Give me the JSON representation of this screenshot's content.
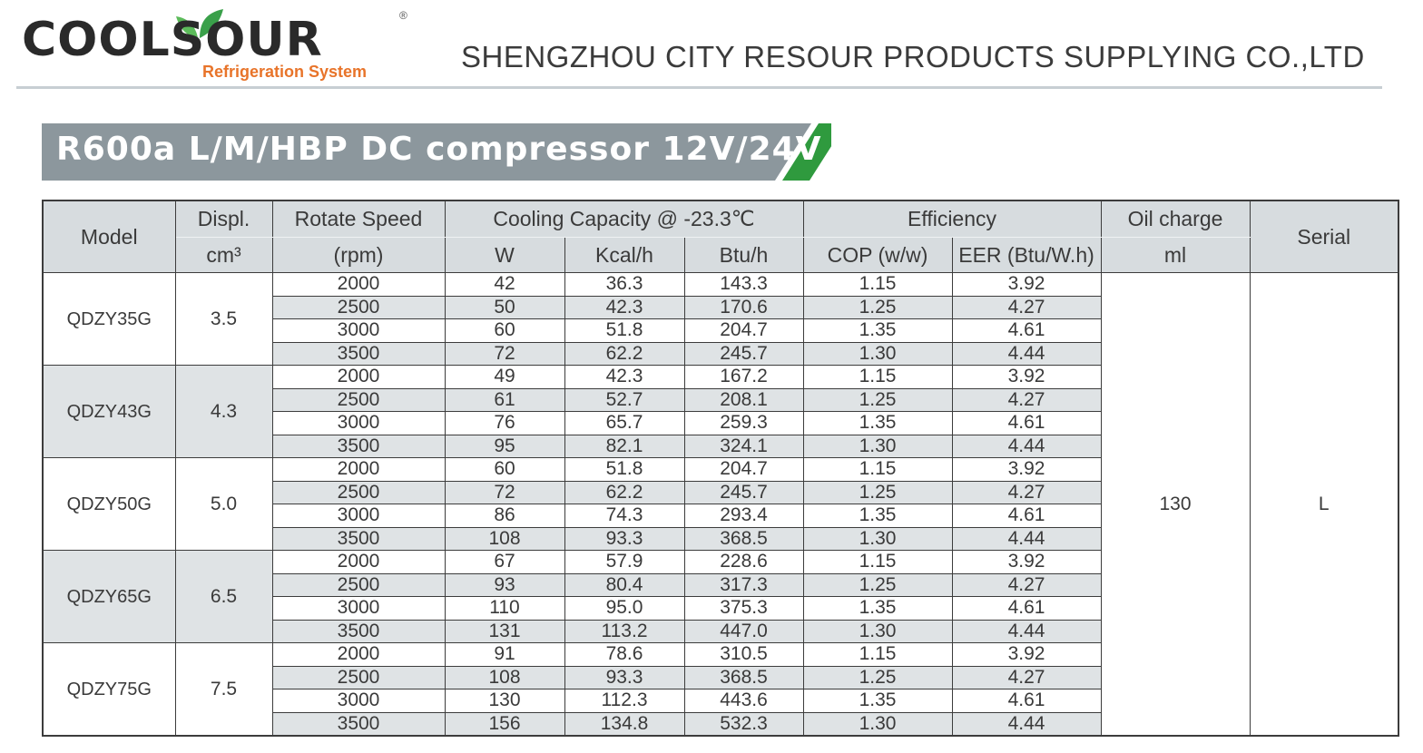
{
  "header": {
    "logo_text": "COOLSOUR",
    "logo_sub": "Refrigeration System",
    "logo_reg": "®",
    "company": "SHENGZHOU CITY RESOUR PRODUCTS SUPPLYING CO.,LTD"
  },
  "title": "R600a L/M/HBP DC compressor  12V/24V",
  "colors": {
    "accent_green": "#2f9a3e",
    "band_gray": "#8c979d",
    "header_fill": "#d7dcdf",
    "logo_orange": "#e8742a"
  },
  "table": {
    "headers": {
      "model": "Model",
      "displ": "Displ.",
      "displ_unit": "cm³",
      "speed": "Rotate Speed",
      "speed_unit": "(rpm)",
      "cooling": "Cooling Capacity @ -23.3℃",
      "w": "W",
      "kcal": "Kcal/h",
      "btu": "Btu/h",
      "efficiency": "Efficiency",
      "cop": "COP (w/w)",
      "eer": "EER (Btu/W.h)",
      "oil": "Oil charge",
      "oil_unit": "ml",
      "serial": "Serial"
    },
    "oil_charge": "130",
    "serial": "L",
    "groups": [
      {
        "model": "QDZY35G",
        "displ": "3.5",
        "rows": [
          [
            "2000",
            "42",
            "36.3",
            "143.3",
            "1.15",
            "3.92"
          ],
          [
            "2500",
            "50",
            "42.3",
            "170.6",
            "1.25",
            "4.27"
          ],
          [
            "3000",
            "60",
            "51.8",
            "204.7",
            "1.35",
            "4.61"
          ],
          [
            "3500",
            "72",
            "62.2",
            "245.7",
            "1.30",
            "4.44"
          ]
        ]
      },
      {
        "model": "QDZY43G",
        "displ": "4.3",
        "rows": [
          [
            "2000",
            "49",
            "42.3",
            "167.2",
            "1.15",
            "3.92"
          ],
          [
            "2500",
            "61",
            "52.7",
            "208.1",
            "1.25",
            "4.27"
          ],
          [
            "3000",
            "76",
            "65.7",
            "259.3",
            "1.35",
            "4.61"
          ],
          [
            "3500",
            "95",
            "82.1",
            "324.1",
            "1.30",
            "4.44"
          ]
        ]
      },
      {
        "model": "QDZY50G",
        "displ": "5.0",
        "rows": [
          [
            "2000",
            "60",
            "51.8",
            "204.7",
            "1.15",
            "3.92"
          ],
          [
            "2500",
            "72",
            "62.2",
            "245.7",
            "1.25",
            "4.27"
          ],
          [
            "3000",
            "86",
            "74.3",
            "293.4",
            "1.35",
            "4.61"
          ],
          [
            "3500",
            "108",
            "93.3",
            "368.5",
            "1.30",
            "4.44"
          ]
        ]
      },
      {
        "model": "QDZY65G",
        "displ": "6.5",
        "rows": [
          [
            "2000",
            "67",
            "57.9",
            "228.6",
            "1.15",
            "3.92"
          ],
          [
            "2500",
            "93",
            "80.4",
            "317.3",
            "1.25",
            "4.27"
          ],
          [
            "3000",
            "110",
            "95.0",
            "375.3",
            "1.35",
            "4.61"
          ],
          [
            "3500",
            "131",
            "113.2",
            "447.0",
            "1.30",
            "4.44"
          ]
        ]
      },
      {
        "model": "QDZY75G",
        "displ": "7.5",
        "rows": [
          [
            "2000",
            "91",
            "78.6",
            "310.5",
            "1.15",
            "3.92"
          ],
          [
            "2500",
            "108",
            "93.3",
            "368.5",
            "1.25",
            "4.27"
          ],
          [
            "3000",
            "130",
            "112.3",
            "443.6",
            "1.35",
            "4.61"
          ],
          [
            "3500",
            "156",
            "134.8",
            "532.3",
            "1.30",
            "4.44"
          ]
        ]
      }
    ]
  }
}
